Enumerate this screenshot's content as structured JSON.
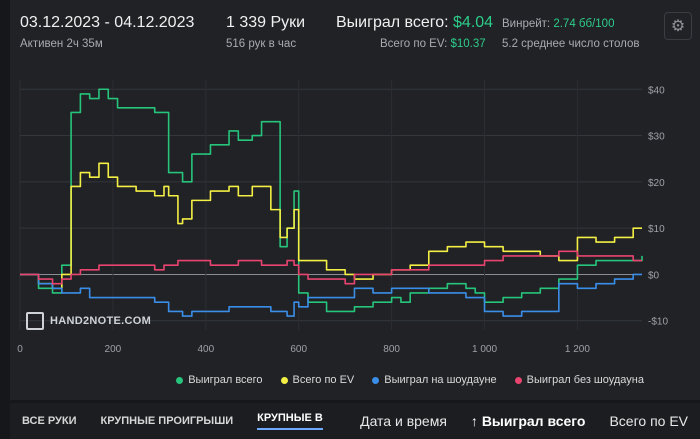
{
  "header": {
    "date_range": "03.12.2023 - 04.12.2023",
    "active": "Активен 2ч 35м",
    "hands": "1 339 Руки",
    "hands_per_hour": "516 рук в час",
    "won_total_label": "Выиграл всего:",
    "won_total_value": "$4.04",
    "ev_total_label": "Всего по EV:",
    "ev_total_value": "$10.37",
    "winrate_label": "Винрейт:",
    "winrate_value": "2.74 бб/100",
    "avg_tables": "5.2 среднее число столов"
  },
  "colors": {
    "won_total": "#27c47b",
    "ev_total": "#f4ef44",
    "showdown": "#3b8ee8",
    "non_showdown": "#e8446f"
  },
  "chart_data": {
    "type": "line",
    "xlabel": "",
    "ylabel": "",
    "xlim": [
      0,
      1339
    ],
    "ylim": [
      -12,
      42
    ],
    "x_ticks": [
      0,
      200,
      400,
      600,
      800,
      1000,
      1200
    ],
    "x_tick_labels": [
      "0",
      "200",
      "400",
      "600",
      "800",
      "1 000",
      "1 200"
    ],
    "y_ticks": [
      40,
      30,
      20,
      10,
      0,
      -10
    ],
    "y_tick_labels": [
      "$40",
      "$30",
      "$20",
      "$10",
      "$0",
      "-$10"
    ],
    "grid": true,
    "legend_position": "bottom",
    "series": [
      {
        "name": "Выиграл всего",
        "x": [
          0,
          40,
          70,
          90,
          110,
          130,
          150,
          170,
          190,
          210,
          250,
          290,
          310,
          320,
          340,
          350,
          370,
          410,
          450,
          470,
          500,
          520,
          540,
          560,
          575,
          590,
          600,
          620,
          660,
          700,
          720,
          760,
          800,
          820,
          840,
          880,
          920,
          960,
          980,
          1000,
          1040,
          1080,
          1120,
          1160,
          1200,
          1240,
          1280,
          1320,
          1339
        ],
        "y": [
          0,
          -3,
          -4,
          2,
          35,
          39,
          38,
          40,
          38,
          36,
          36,
          35,
          35,
          22,
          22,
          20,
          26,
          28,
          31,
          29,
          30,
          33,
          33,
          6,
          10,
          18,
          -4,
          -6,
          -8,
          -8,
          -7,
          -6,
          -5,
          -6,
          -4,
          -3,
          -2,
          -3,
          -4,
          -6,
          -5,
          -4,
          -3,
          -1,
          2,
          3,
          3,
          3,
          4
        ],
        "color": "#27c47b"
      },
      {
        "name": "Всего по EV",
        "x": [
          0,
          40,
          70,
          90,
          110,
          130,
          150,
          170,
          190,
          210,
          250,
          290,
          310,
          320,
          340,
          350,
          370,
          410,
          450,
          470,
          500,
          520,
          540,
          560,
          575,
          590,
          600,
          620,
          660,
          700,
          720,
          760,
          800,
          820,
          840,
          880,
          920,
          960,
          980,
          1000,
          1040,
          1080,
          1120,
          1160,
          1200,
          1240,
          1280,
          1320,
          1339
        ],
        "y": [
          0,
          -2,
          -3,
          0,
          19,
          22,
          21,
          24,
          21,
          19,
          18,
          17,
          19,
          17,
          11,
          12,
          16,
          18,
          19,
          17,
          19,
          19,
          14,
          8,
          10,
          14,
          3,
          3,
          1,
          0,
          -1,
          0,
          1,
          1,
          2,
          5,
          6,
          7,
          7,
          6,
          5,
          5,
          4,
          3,
          8,
          7,
          8,
          10,
          10
        ],
        "color": "#f4ef44"
      },
      {
        "name": "Выиграл на шоудауне",
        "x": [
          0,
          40,
          70,
          90,
          110,
          130,
          150,
          170,
          190,
          210,
          250,
          290,
          310,
          320,
          340,
          350,
          370,
          410,
          450,
          470,
          500,
          520,
          540,
          560,
          575,
          590,
          600,
          620,
          660,
          700,
          720,
          760,
          800,
          820,
          840,
          880,
          920,
          960,
          980,
          1000,
          1040,
          1080,
          1120,
          1160,
          1200,
          1240,
          1280,
          1320,
          1339
        ],
        "y": [
          0,
          -2,
          -3,
          -4,
          -4,
          -3,
          -5,
          -5,
          -5,
          -5,
          -5,
          -6,
          -6,
          -8,
          -8,
          -9,
          -8,
          -8,
          -7,
          -7,
          -7,
          -7,
          -8,
          -8,
          -9,
          -6,
          -7,
          -5,
          -5,
          -5,
          -3,
          -4,
          -3,
          -3,
          -3,
          -4,
          -4,
          -5,
          -5,
          -8,
          -9,
          -8,
          -8,
          -2,
          -3,
          -2,
          -1,
          0,
          0
        ],
        "color": "#3b8ee8"
      },
      {
        "name": "Выиграл без шоудауна",
        "x": [
          0,
          40,
          70,
          90,
          110,
          130,
          150,
          170,
          190,
          210,
          250,
          290,
          310,
          320,
          340,
          350,
          370,
          410,
          450,
          470,
          500,
          520,
          540,
          560,
          575,
          590,
          600,
          620,
          660,
          700,
          720,
          760,
          800,
          820,
          840,
          880,
          920,
          960,
          980,
          1000,
          1040,
          1080,
          1120,
          1160,
          1200,
          1240,
          1280,
          1320,
          1339
        ],
        "y": [
          0,
          -1,
          -2,
          -1,
          0,
          1,
          1,
          2,
          2,
          2,
          2,
          1,
          2,
          2,
          3,
          3,
          3,
          2,
          2,
          3,
          3,
          2,
          2,
          2,
          3,
          2,
          0,
          -1,
          -1,
          -2,
          0,
          0,
          1,
          1,
          1,
          2,
          2,
          2,
          2,
          3,
          4,
          4,
          4,
          5,
          4,
          4,
          4,
          3,
          3
        ],
        "color": "#e8446f"
      }
    ]
  },
  "logo": {
    "text": "HAND2NOTE.COM"
  },
  "tabs": [
    {
      "label": "ВСЕ РУКИ",
      "active": false
    },
    {
      "label": "КРУПНЫЕ ПРОИГРЫШИ",
      "active": false
    },
    {
      "label": "КРУПНЫЕ В",
      "active": true
    }
  ],
  "sort": {
    "date_time": "Дата и время",
    "arrow": "↑",
    "won_total": "Выиграл всего",
    "ev_total": "Всего по EV"
  }
}
